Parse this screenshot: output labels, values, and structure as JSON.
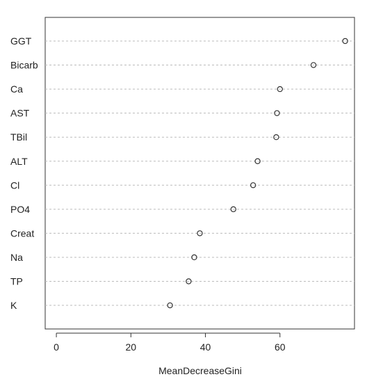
{
  "chart_data": {
    "type": "scatter",
    "subtype": "dotchart",
    "xlabel": "MeanDecreaseGini",
    "ylabel": "",
    "xlim": [
      -3,
      80
    ],
    "x_ticks": [
      0,
      20,
      40,
      60
    ],
    "grid": "horizontal dashed",
    "categories": [
      "GGT",
      "Bicarb",
      "Ca",
      "AST",
      "TBil",
      "ALT",
      "Cl",
      "PO4",
      "Creat",
      "Na",
      "TP",
      "K"
    ],
    "values": [
      77.5,
      69.0,
      60.0,
      59.2,
      59.0,
      54.0,
      52.8,
      47.5,
      38.5,
      37.0,
      35.5,
      30.5
    ]
  }
}
